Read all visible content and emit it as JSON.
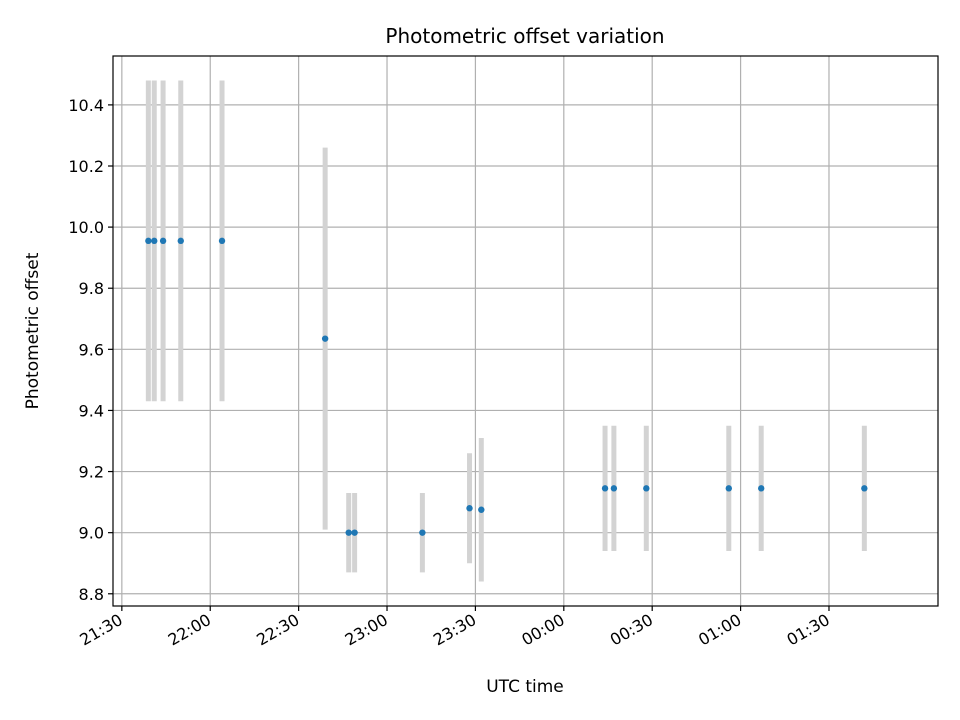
{
  "chart_data": {
    "type": "scatter",
    "title": "Photometric offset variation",
    "xlabel": "UTC time",
    "ylabel": "Photometric offset",
    "x_tick_labels": [
      "21:30",
      "22:00",
      "22:30",
      "23:00",
      "23:30",
      "00:00",
      "00:30",
      "01:00",
      "01:30"
    ],
    "y_tick_labels": [
      "8.8",
      "9.0",
      "9.2",
      "9.4",
      "9.6",
      "9.8",
      "10.0",
      "10.2",
      "10.4"
    ],
    "y_ticks": [
      8.8,
      9.0,
      9.2,
      9.4,
      9.6,
      9.8,
      10.0,
      10.2,
      10.4
    ],
    "xlim": [
      "21:27",
      "26:07"
    ],
    "ylim": [
      8.76,
      10.56
    ],
    "grid": true,
    "point_color": "#1f77b4",
    "errorbar_color": "#d3d3d3",
    "points": [
      {
        "x": "21:39",
        "y": 9.955,
        "ylow": 9.43,
        "yhigh": 10.48
      },
      {
        "x": "21:41",
        "y": 9.955,
        "ylow": 9.43,
        "yhigh": 10.48
      },
      {
        "x": "21:44",
        "y": 9.955,
        "ylow": 9.43,
        "yhigh": 10.48
      },
      {
        "x": "21:50",
        "y": 9.955,
        "ylow": 9.43,
        "yhigh": 10.48
      },
      {
        "x": "22:04",
        "y": 9.955,
        "ylow": 9.43,
        "yhigh": 10.48
      },
      {
        "x": "22:39",
        "y": 9.635,
        "ylow": 9.01,
        "yhigh": 10.26
      },
      {
        "x": "22:47",
        "y": 9.0,
        "ylow": 8.87,
        "yhigh": 9.13
      },
      {
        "x": "22:49",
        "y": 9.0,
        "ylow": 8.87,
        "yhigh": 9.13
      },
      {
        "x": "23:12",
        "y": 9.0,
        "ylow": 8.87,
        "yhigh": 9.13
      },
      {
        "x": "23:28",
        "y": 9.08,
        "ylow": 8.9,
        "yhigh": 9.26
      },
      {
        "x": "23:32",
        "y": 9.075,
        "ylow": 8.84,
        "yhigh": 9.31
      },
      {
        "x": "24:14",
        "y": 9.145,
        "ylow": 8.94,
        "yhigh": 9.35
      },
      {
        "x": "24:17",
        "y": 9.145,
        "ylow": 8.94,
        "yhigh": 9.35
      },
      {
        "x": "24:28",
        "y": 9.145,
        "ylow": 8.94,
        "yhigh": 9.35
      },
      {
        "x": "24:56",
        "y": 9.145,
        "ylow": 8.94,
        "yhigh": 9.35
      },
      {
        "x": "25:07",
        "y": 9.145,
        "ylow": 8.94,
        "yhigh": 9.35
      },
      {
        "x": "25:42",
        "y": 9.145,
        "ylow": 8.94,
        "yhigh": 9.35
      }
    ]
  }
}
